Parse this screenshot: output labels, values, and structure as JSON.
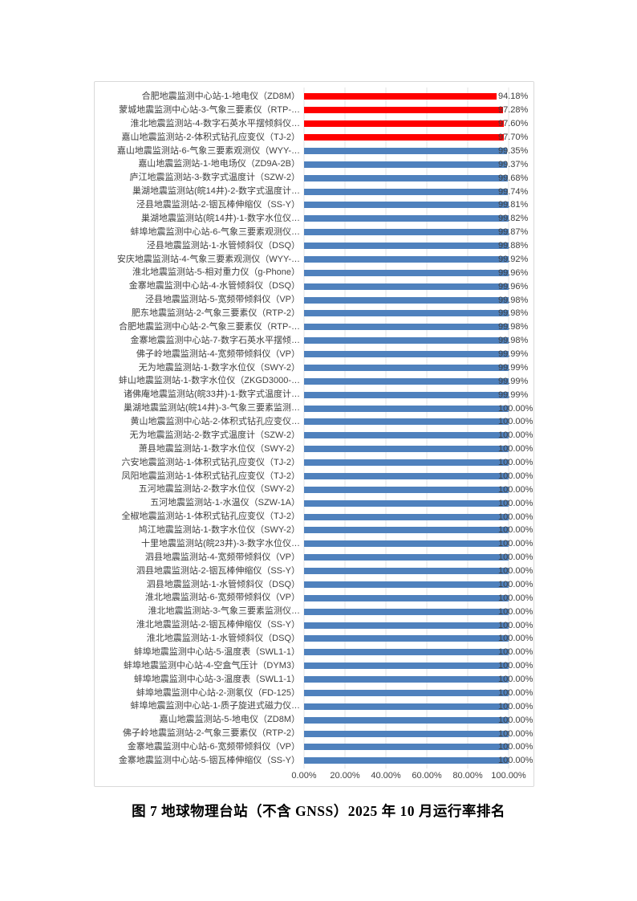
{
  "caption": "图 7 地球物理台站（不含 GNSS）2025 年 10 月运行率排名",
  "chart_data": {
    "type": "bar",
    "orientation": "horizontal",
    "title": "",
    "xlabel": "",
    "ylabel": "",
    "xlim": [
      0,
      100
    ],
    "grid": true,
    "legend": "none",
    "x_ticks": [
      "0.00%",
      "20.00%",
      "40.00%",
      "60.00%",
      "80.00%",
      "100.00%"
    ],
    "colors": {
      "highlight": "#ff0000",
      "default": "#4f81bd"
    },
    "items": [
      {
        "label": "合肥地震监测中心站-1-地电仪（ZD8M）",
        "value": 94.18,
        "display": "94.18%",
        "highlight": true
      },
      {
        "label": "蒙城地震监测中心站-3-气象三要素仪（RTP-…",
        "value": 97.28,
        "display": "97.28%",
        "highlight": true
      },
      {
        "label": "淮北地震监测站-4-数字石英水平摆倾斜仪…",
        "value": 97.6,
        "display": "97.60%",
        "highlight": true
      },
      {
        "label": "嘉山地震监测站-2-体积式钻孔应变仪（TJ-2）",
        "value": 97.7,
        "display": "97.70%",
        "highlight": true
      },
      {
        "label": "嘉山地震监测站-6-气象三要素观测仪（WYY-…",
        "value": 99.35,
        "display": "99.35%",
        "highlight": false
      },
      {
        "label": "嘉山地震监测站-1-地电场仪（ZD9A-2B）",
        "value": 99.37,
        "display": "99.37%",
        "highlight": false
      },
      {
        "label": "庐江地震监测站-3-数字式温度计（SZW-2）",
        "value": 99.68,
        "display": "99.68%",
        "highlight": false
      },
      {
        "label": "巢湖地震监测站(皖14井)-2-数字式温度计…",
        "value": 99.74,
        "display": "99.74%",
        "highlight": false
      },
      {
        "label": "泾县地震监测站-2-铟瓦棒伸缩仪（SS-Y）",
        "value": 99.81,
        "display": "99.81%",
        "highlight": false
      },
      {
        "label": "巢湖地震监测站(皖14井)-1-数字水位仪…",
        "value": 99.82,
        "display": "99.82%",
        "highlight": false
      },
      {
        "label": "蚌埠地震监测中心站-6-气象三要素观测仪…",
        "value": 99.87,
        "display": "99.87%",
        "highlight": false
      },
      {
        "label": "泾县地震监测站-1-水管倾斜仪（DSQ）",
        "value": 99.88,
        "display": "99.88%",
        "highlight": false
      },
      {
        "label": "安庆地震监测站-4-气象三要素观测仪（WYY-…",
        "value": 99.92,
        "display": "99.92%",
        "highlight": false
      },
      {
        "label": "淮北地震监测站-5-相对重力仪（g-Phone）",
        "value": 99.96,
        "display": "99.96%",
        "highlight": false
      },
      {
        "label": "金寨地震监测中心站-4-水管倾斜仪（DSQ）",
        "value": 99.96,
        "display": "99.96%",
        "highlight": false
      },
      {
        "label": "泾县地震监测站-5-宽频带倾斜仪（VP）",
        "value": 99.98,
        "display": "99.98%",
        "highlight": false
      },
      {
        "label": "肥东地震监测站-2-气象三要素仪（RTP-2）",
        "value": 99.98,
        "display": "99.98%",
        "highlight": false
      },
      {
        "label": "合肥地震监测中心站-2-气象三要素仪（RTP-…",
        "value": 99.98,
        "display": "99.98%",
        "highlight": false
      },
      {
        "label": "金寨地震监测中心站-7-数字石英水平摆倾…",
        "value": 99.98,
        "display": "99.98%",
        "highlight": false
      },
      {
        "label": "佛子岭地震监测站-4-宽频带倾斜仪（VP）",
        "value": 99.99,
        "display": "99.99%",
        "highlight": false
      },
      {
        "label": "无为地震监测站-1-数字水位仪（SWY-2）",
        "value": 99.99,
        "display": "99.99%",
        "highlight": false
      },
      {
        "label": "蚌山地震监测站-1-数字水位仪（ZKGD3000-…",
        "value": 99.99,
        "display": "99.99%",
        "highlight": false
      },
      {
        "label": "诸佛庵地震监测站(皖33井)-1-数字式温度计…",
        "value": 99.99,
        "display": "99.99%",
        "highlight": false
      },
      {
        "label": "巢湖地震监测站(皖14井)-3-气象三要素监测…",
        "value": 100.0,
        "display": "100.00%",
        "highlight": false
      },
      {
        "label": "黄山地震监测中心站-2-体积式钻孔应变仪…",
        "value": 100.0,
        "display": "100.00%",
        "highlight": false
      },
      {
        "label": "无为地震监测站-2-数字式温度计（SZW-2）",
        "value": 100.0,
        "display": "100.00%",
        "highlight": false
      },
      {
        "label": "萧县地震监测站-1-数字水位仪（SWY-2）",
        "value": 100.0,
        "display": "100.00%",
        "highlight": false
      },
      {
        "label": "六安地震监测站-1-体积式钻孔应变仪（TJ-2）",
        "value": 100.0,
        "display": "100.00%",
        "highlight": false
      },
      {
        "label": "凤阳地震监测站-1-体积式钻孔应变仪（TJ-2）",
        "value": 100.0,
        "display": "100.00%",
        "highlight": false
      },
      {
        "label": "五河地震监测站-2-数字水位仪（SWY-2）",
        "value": 100.0,
        "display": "100.00%",
        "highlight": false
      },
      {
        "label": "五河地震监测站-1-水温仪（SZW-1A）",
        "value": 100.0,
        "display": "100.00%",
        "highlight": false
      },
      {
        "label": "全椒地震监测站-1-体积式钻孔应变仪（TJ-2）",
        "value": 100.0,
        "display": "100.00%",
        "highlight": false
      },
      {
        "label": "鸠江地震监测站-1-数字水位仪（SWY-2）",
        "value": 100.0,
        "display": "100.00%",
        "highlight": false
      },
      {
        "label": "十里地震监测站(皖23井)-3-数字水位仪…",
        "value": 100.0,
        "display": "100.00%",
        "highlight": false
      },
      {
        "label": "泗县地震监测站-4-宽频带倾斜仪（VP）",
        "value": 100.0,
        "display": "100.00%",
        "highlight": false
      },
      {
        "label": "泗县地震监测站-2-铟瓦棒伸缩仪（SS-Y）",
        "value": 100.0,
        "display": "100.00%",
        "highlight": false
      },
      {
        "label": "泗县地震监测站-1-水管倾斜仪（DSQ）",
        "value": 100.0,
        "display": "100.00%",
        "highlight": false
      },
      {
        "label": "淮北地震监测站-6-宽频带倾斜仪（VP）",
        "value": 100.0,
        "display": "100.00%",
        "highlight": false
      },
      {
        "label": "淮北地震监测站-3-气象三要素监测仪…",
        "value": 100.0,
        "display": "100.00%",
        "highlight": false
      },
      {
        "label": "淮北地震监测站-2-铟瓦棒伸缩仪（SS-Y）",
        "value": 100.0,
        "display": "100.00%",
        "highlight": false
      },
      {
        "label": "淮北地震监测站-1-水管倾斜仪（DSQ）",
        "value": 100.0,
        "display": "100.00%",
        "highlight": false
      },
      {
        "label": "蚌埠地震监测中心站-5-温度表（SWL1-1）",
        "value": 100.0,
        "display": "100.00%",
        "highlight": false
      },
      {
        "label": "蚌埠地震监测中心站-4-空盒气压计（DYM3）",
        "value": 100.0,
        "display": "100.00%",
        "highlight": false
      },
      {
        "label": "蚌埠地震监测中心站-3-温度表（SWL1-1）",
        "value": 100.0,
        "display": "100.00%",
        "highlight": false
      },
      {
        "label": "蚌埠地震监测中心站-2-测氡仪（FD-125）",
        "value": 100.0,
        "display": "100.00%",
        "highlight": false
      },
      {
        "label": "蚌埠地震监测中心站-1-质子旋进式磁力仪…",
        "value": 100.0,
        "display": "100.00%",
        "highlight": false
      },
      {
        "label": "嘉山地震监测站-5-地电仪（ZD8M）",
        "value": 100.0,
        "display": "100.00%",
        "highlight": false
      },
      {
        "label": "佛子岭地震监测站-2-气象三要素仪（RTP-2）",
        "value": 100.0,
        "display": "100.00%",
        "highlight": false
      },
      {
        "label": "金寨地震监测中心站-6-宽频带倾斜仪（VP）",
        "value": 100.0,
        "display": "100.00%",
        "highlight": false
      },
      {
        "label": "金寨地震监测中心站-5-铟瓦棒伸缩仪（SS-Y）",
        "value": 100.0,
        "display": "100.00%",
        "highlight": false
      }
    ]
  }
}
